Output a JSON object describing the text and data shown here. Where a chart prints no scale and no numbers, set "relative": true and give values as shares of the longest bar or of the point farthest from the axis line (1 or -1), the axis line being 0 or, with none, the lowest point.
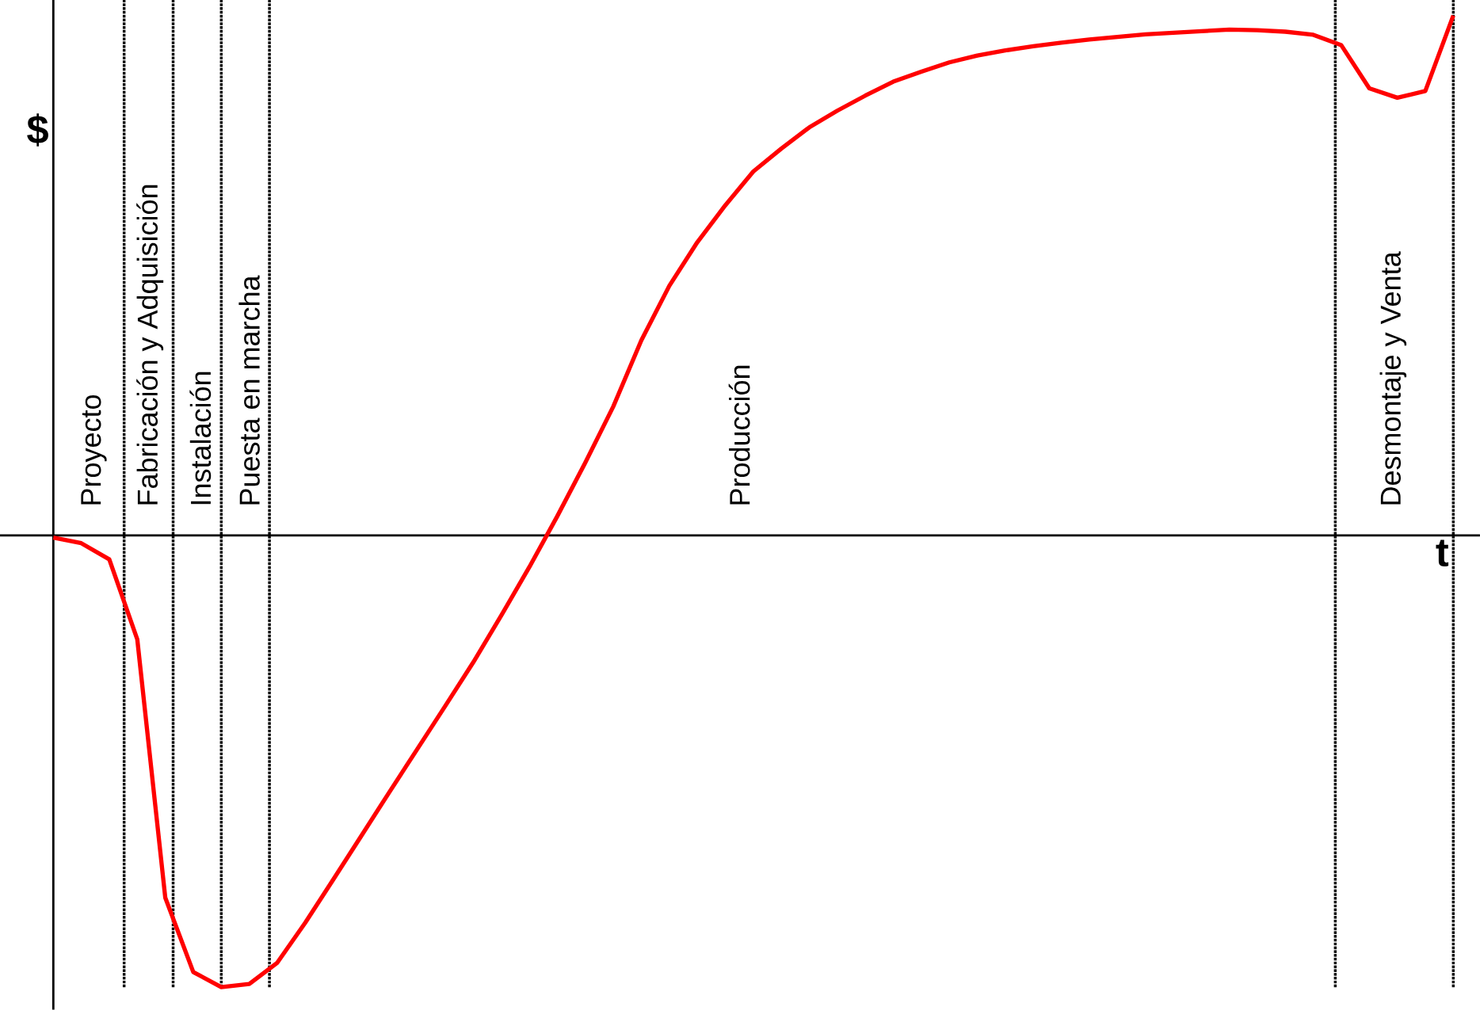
{
  "chart_data": {
    "type": "line",
    "xlabel": "t",
    "ylabel": "$",
    "relative": true,
    "marker": "none",
    "line_style": "solid",
    "tick_labels": false,
    "color": "#ff0000",
    "categories": [
      null,
      null,
      null,
      null,
      null,
      null,
      null,
      null,
      null,
      null,
      null,
      null,
      null,
      null,
      null,
      null,
      null,
      null,
      null,
      null,
      null,
      null,
      null,
      null,
      null,
      null,
      null,
      null,
      null,
      null,
      null,
      null,
      null,
      null,
      null,
      null,
      null,
      null,
      null,
      null,
      null,
      null,
      null,
      null,
      null,
      null,
      null,
      null,
      null,
      null,
      null
    ],
    "values": [
      -0.004,
      -0.015,
      -0.046,
      -0.2,
      -0.697,
      -0.84,
      -0.869,
      -0.863,
      -0.822,
      -0.745,
      -0.662,
      -0.578,
      -0.494,
      -0.411,
      -0.328,
      -0.244,
      -0.154,
      -0.061,
      0.037,
      0.14,
      0.248,
      0.375,
      0.48,
      0.564,
      0.635,
      0.7,
      0.744,
      0.785,
      0.817,
      0.846,
      0.873,
      0.892,
      0.91,
      0.923,
      0.933,
      0.941,
      0.948,
      0.954,
      0.959,
      0.964,
      0.967,
      0.97,
      0.973,
      0.972,
      0.969,
      0.963,
      0.943,
      0.86,
      0.842,
      0.855,
      1
    ],
    "annotations": [
      "Proyecto",
      "Fabricación y Adquisición",
      "Instalación",
      "Puesta en marcha",
      "Producción",
      "Desmontaje y Venta"
    ]
  }
}
